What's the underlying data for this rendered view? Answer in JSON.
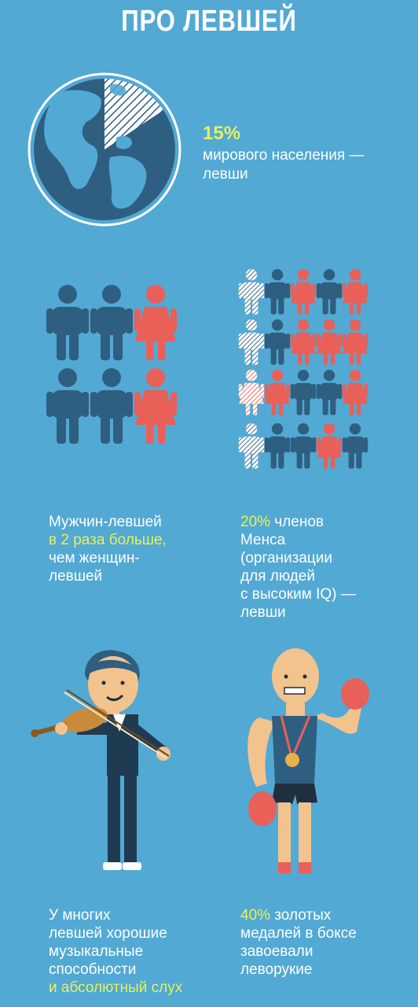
{
  "title": "ПРО ЛЕВШЕЙ",
  "colors": {
    "background": "#52a9d4",
    "figure_dark": "#2f5f80",
    "figure_red": "#e86058",
    "highlight": "#e8f05a",
    "text": "#ffffff"
  },
  "section1": {
    "percent": "15%",
    "line1": "мирового населения —",
    "line2": "левши"
  },
  "section2": {
    "line1": "Мужчин-левшей",
    "line2_hl": "в 2 раза больше,",
    "line3": "чем женщин-",
    "line4": "левшей"
  },
  "section3": {
    "percent": "20%",
    "line1_rest": " членов",
    "line2": "Менса",
    "line3": "(организации",
    "line4": "для людей",
    "line5": "с высоким IQ) —",
    "line6": "левши"
  },
  "section4": {
    "line1": "У многих",
    "line2": "левшей хорошие",
    "line3": "музыкальные",
    "line4": "способности",
    "line5_hl": "и абсолютный слух"
  },
  "section5": {
    "percent": "40%",
    "line1_rest": " золотых",
    "line2": "медалей в боксе",
    "line3": "завоевали",
    "line4": "леворукие"
  },
  "icons": {
    "globe": "globe-icon",
    "man": "man-icon",
    "woman": "woman-icon",
    "violinist": "violinist-illustration",
    "boxer": "boxer-illustration"
  }
}
